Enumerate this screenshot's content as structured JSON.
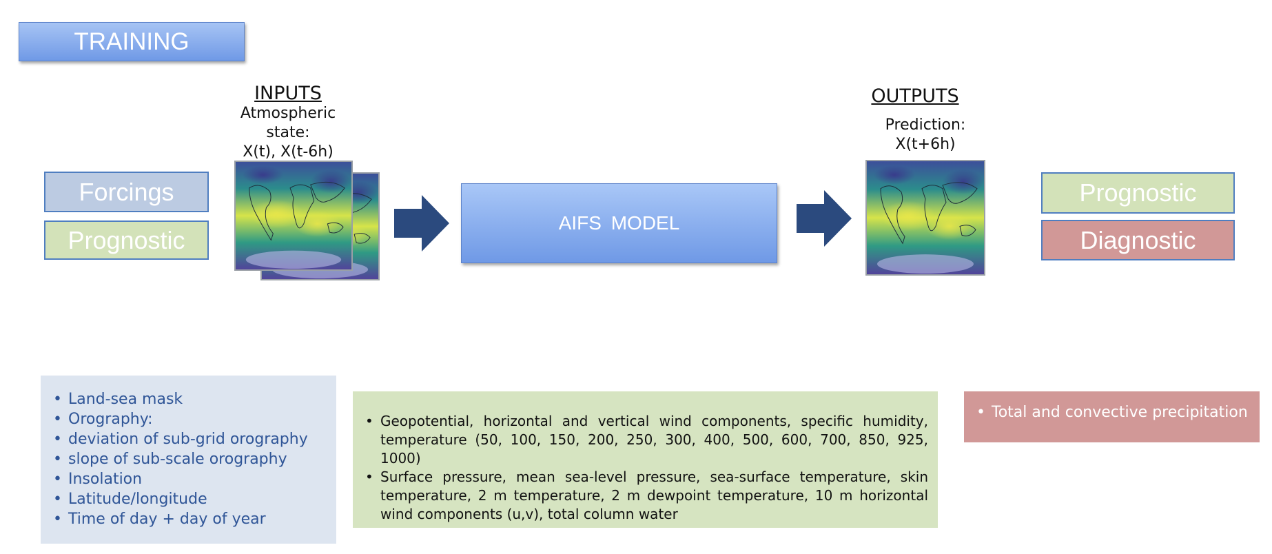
{
  "training": "TRAINING",
  "inputs": {
    "title": "INPUTS",
    "line1": "Atmospheric state:",
    "line2": "X(t), X(t-6h)"
  },
  "outputs": {
    "title": "OUTPUTS",
    "line1": "Prediction:",
    "line2": "X(t+6h)"
  },
  "model": "AIFS  MODEL",
  "left_tags": {
    "forcings": "Forcings",
    "prognostic": "Prognostic"
  },
  "right_tags": {
    "prognostic": "Prognostic",
    "diagnostic": "Diagnostic"
  },
  "forcings_list": [
    "Land-sea mask",
    "Orography:",
    "deviation of sub-grid orography",
    "slope of sub-scale orography",
    "Insolation",
    "Latitude/longitude",
    "Time of day + day of year"
  ],
  "prognostic_list": [
    "Geopotential, horizontal and vertical wind components, specific humidity, temperature (50, 100, 150, 200, 250, 300, 400, 500, 600, 700, 850, 925, 1000)",
    "Surface pressure, mean sea-level pressure, sea-surface temperature, skin temperature, 2 m temperature, 2 m dewpoint temperature, 10 m horizontal wind components (u,v), total column water"
  ],
  "diagnostic_list": [
    "Total and convective precipitation"
  ],
  "colors": {
    "arrow": "#2b4a7e",
    "blue_tag": "#bccbe2",
    "green_tag": "#d3e2b9",
    "red_tag": "#d19897",
    "tag_border": "#4f7ec0"
  }
}
